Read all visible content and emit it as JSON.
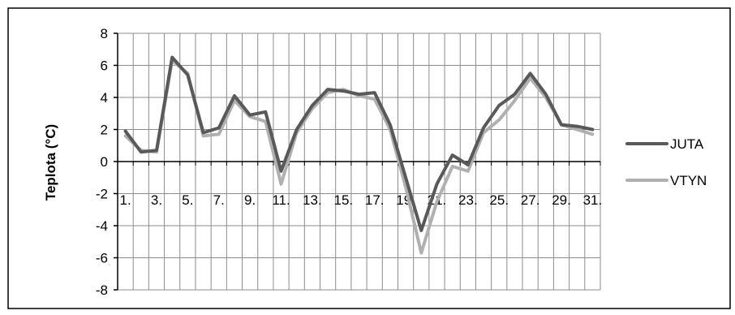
{
  "chart_data": {
    "type": "line",
    "ylabel": "Teplota (°C)",
    "xlabel": "",
    "ylim": [
      -8,
      8
    ],
    "yticks": [
      8,
      6,
      4,
      2,
      0,
      -2,
      -4,
      -6,
      -8
    ],
    "x": [
      1,
      2,
      3,
      4,
      5,
      6,
      7,
      8,
      9,
      10,
      11,
      12,
      13,
      14,
      15,
      16,
      17,
      18,
      19,
      20,
      21,
      22,
      23,
      24,
      25,
      26,
      27,
      28,
      29,
      30,
      31
    ],
    "x_tick_labels": [
      "1.",
      "3.",
      "5.",
      "7.",
      "9.",
      "11.",
      "13.",
      "15.",
      "17.",
      "19.",
      "21.",
      "23.",
      "25.",
      "27.",
      "29.",
      "31."
    ],
    "grid": true,
    "legend_position": "right",
    "series": [
      {
        "name": "JUTA",
        "color": "#595959",
        "values": [
          1.9,
          0.6,
          0.7,
          6.5,
          5.4,
          1.8,
          2.1,
          4.1,
          2.9,
          3.1,
          -0.6,
          2.0,
          3.5,
          4.5,
          4.4,
          4.2,
          4.3,
          2.3,
          -1.0,
          -4.3,
          -1.4,
          0.4,
          -0.2,
          2.1,
          3.5,
          4.2,
          5.5,
          4.2,
          2.3,
          2.2,
          2.0
        ]
      },
      {
        "name": "VTYN",
        "color": "#b0b0b0",
        "values": [
          1.6,
          0.7,
          0.6,
          6.3,
          5.5,
          1.6,
          1.7,
          3.8,
          2.8,
          2.5,
          -1.4,
          1.8,
          3.3,
          4.3,
          4.5,
          4.1,
          3.9,
          2.0,
          -1.6,
          -5.7,
          -2.5,
          -0.3,
          -0.6,
          1.8,
          2.6,
          3.8,
          5.2,
          4.0,
          2.3,
          2.0,
          1.7
        ]
      }
    ]
  }
}
